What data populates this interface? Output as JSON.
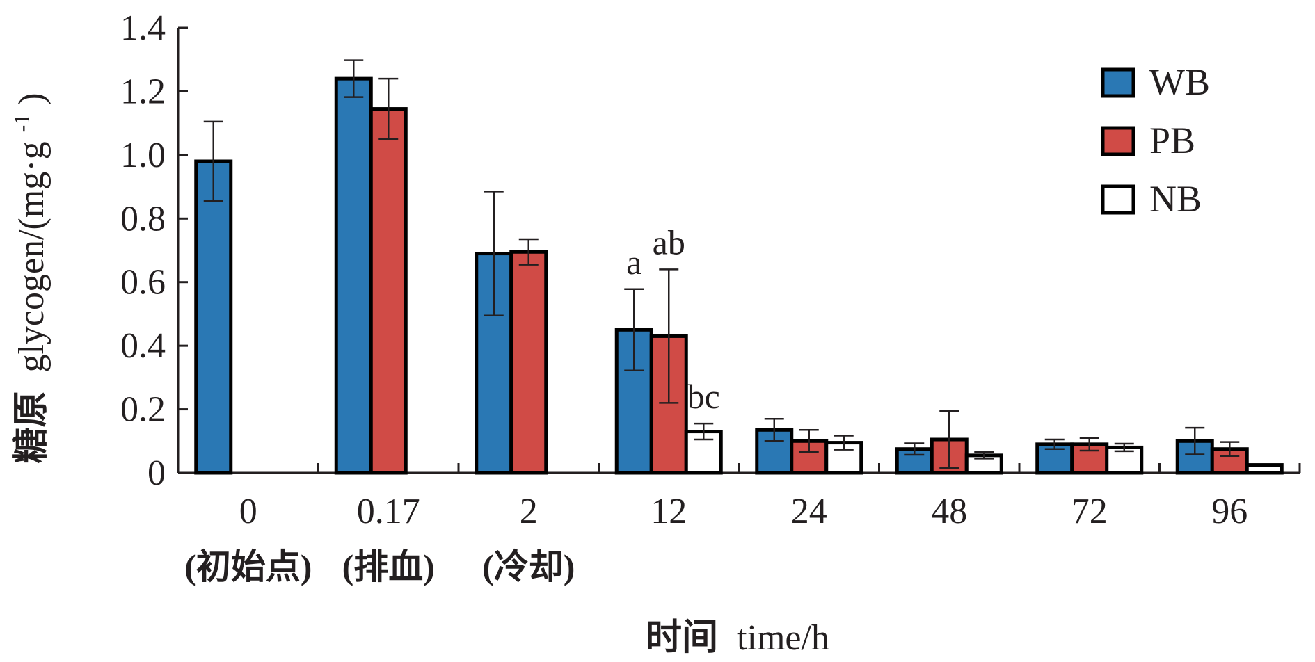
{
  "chart_data": {
    "type": "bar",
    "ylabel_zh": "糖原",
    "ylabel_en": "glycogen/(mg·g",
    "ylabel_sup": "-1",
    "ylabel_close": ")",
    "xlabel_zh": "时间",
    "xlabel_en": "time/h",
    "categories": [
      "0",
      "0.17",
      "2",
      "12",
      "24",
      "48",
      "72",
      "96"
    ],
    "sub_labels": [
      "(初始点)",
      "(排血)",
      "(冷却)",
      "",
      "",
      "",
      "",
      ""
    ],
    "ylim": [
      0,
      1.4
    ],
    "yticks": [
      0,
      0.2,
      0.4,
      0.6,
      0.8,
      1.0,
      1.2,
      1.4
    ],
    "ytick_labels": [
      "0",
      "0.2",
      "0.4",
      "0.6",
      "0.8",
      "1.0",
      "1.2",
      "1.4"
    ],
    "series": [
      {
        "name": "WB",
        "color": "#2a78b4",
        "values": [
          0.98,
          1.24,
          0.69,
          0.45,
          0.135,
          0.075,
          0.09,
          0.1
        ],
        "errors": [
          0.125,
          0.058,
          0.195,
          0.128,
          0.035,
          0.018,
          0.015,
          0.042
        ]
      },
      {
        "name": "PB",
        "color": "#d04b46",
        "values": [
          null,
          1.145,
          0.695,
          0.43,
          0.1,
          0.105,
          0.09,
          0.075
        ],
        "errors": [
          null,
          0.095,
          0.04,
          0.21,
          0.035,
          0.09,
          0.02,
          0.022
        ]
      },
      {
        "name": "NB",
        "color": "#ffffff",
        "values": [
          null,
          null,
          null,
          0.13,
          0.095,
          0.055,
          0.08,
          0.025
        ],
        "errors": [
          null,
          null,
          null,
          0.025,
          0.022,
          0.01,
          0.012,
          0.0
        ]
      }
    ],
    "annotations": [
      {
        "text": "a",
        "category": "12",
        "series": "WB"
      },
      {
        "text": "ab",
        "category": "12",
        "series": "PB"
      },
      {
        "text": "bc",
        "category": "12",
        "series": "NB"
      }
    ],
    "legend": {
      "position": "top-right",
      "entries": [
        "WB",
        "PB",
        "NB"
      ]
    },
    "grid": false
  }
}
